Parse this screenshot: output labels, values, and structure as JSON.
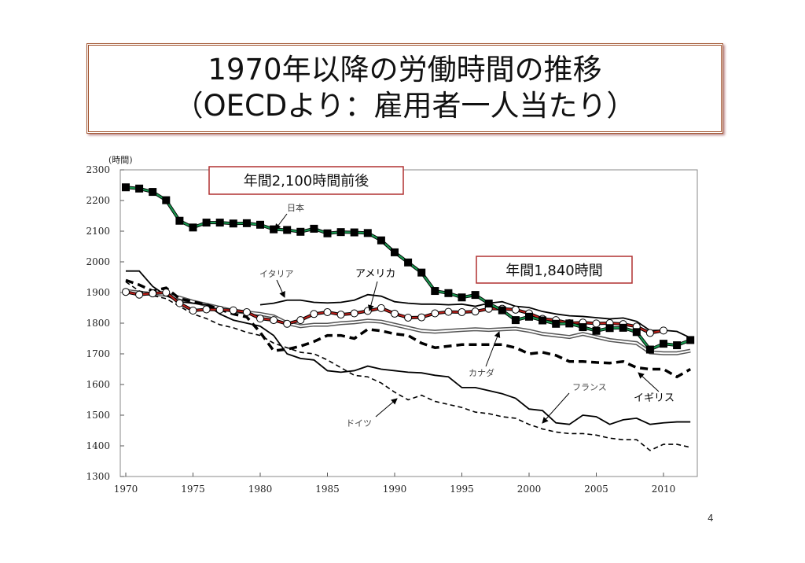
{
  "title": {
    "line1": "1970年以降の労働時間の推移",
    "line2": "（OECDより：雇用者一人当たり）"
  },
  "page_number": "4",
  "chart_data": {
    "type": "line",
    "ylabel": "(時間)",
    "ylim": [
      1300,
      2300
    ],
    "xlim": [
      1970,
      2012
    ],
    "xticks": [
      1970,
      1975,
      1980,
      1985,
      1990,
      1995,
      2000,
      2005,
      2010
    ],
    "yticks": [
      1300,
      1400,
      1500,
      1600,
      1700,
      1800,
      1900,
      2000,
      2100,
      2200,
      2300
    ],
    "grid": false,
    "annotations": [
      {
        "text": "年間2,100時間前後"
      },
      {
        "text": "年間1,840時間"
      }
    ],
    "series": [
      {
        "name": "日本",
        "start": 1970,
        "style": "green-line-black-squares",
        "color": "#1a9850",
        "values": [
          2243,
          2239,
          2228,
          2201,
          2134,
          2112,
          2128,
          2128,
          2125,
          2126,
          2121,
          2106,
          2104,
          2098,
          2108,
          2093,
          2097,
          2096,
          2094,
          2070,
          2031,
          1998,
          1965,
          1905,
          1898,
          1884,
          1892,
          1864,
          1842,
          1810,
          1821,
          1809,
          1798,
          1799,
          1787,
          1775,
          1784,
          1785,
          1771,
          1714,
          1733,
          1728,
          1745
        ]
      },
      {
        "name": "アメリカ",
        "start": 1970,
        "style": "red-line-white-circles",
        "color": "#c0201a",
        "values": [
          1902,
          1893,
          1897,
          1900,
          1865,
          1841,
          1845,
          1844,
          1842,
          1836,
          1815,
          1810,
          1798,
          1810,
          1830,
          1836,
          1828,
          1832,
          1840,
          1849,
          1831,
          1818,
          1819,
          1832,
          1837,
          1836,
          1838,
          1847,
          1847,
          1844,
          1832,
          1814,
          1810,
          1800,
          1802,
          1799,
          1800,
          1797,
          1789,
          1768,
          1776
        ]
      },
      {
        "name": "イタリア",
        "start": 1980,
        "style": "solid",
        "color": "#000000",
        "values": [
          1860,
          1865,
          1875,
          1875,
          1868,
          1866,
          1868,
          1875,
          1893,
          1888,
          1870,
          1865,
          1862,
          1862,
          1860,
          1862,
          1855,
          1865,
          1870,
          1855,
          1851,
          1838,
          1830,
          1824,
          1822,
          1818,
          1814,
          1817,
          1806,
          1776,
          1777,
          1773,
          1752
        ]
      },
      {
        "name": "カナダ",
        "start": 1970,
        "style": "double",
        "color": "#777777",
        "values": [
          1905,
          1900,
          1895,
          1893,
          1883,
          1870,
          1860,
          1850,
          1840,
          1835,
          1830,
          1822,
          1800,
          1790,
          1795,
          1795,
          1800,
          1803,
          1808,
          1805,
          1795,
          1785,
          1775,
          1772,
          1775,
          1778,
          1780,
          1778,
          1780,
          1782,
          1775,
          1765,
          1760,
          1755,
          1765,
          1755,
          1745,
          1740,
          1735,
          1705,
          1702,
          1702,
          1710
        ]
      },
      {
        "name": "イギリス",
        "start": 1970,
        "style": "thick-dashed",
        "color": "#000000",
        "values": [
          1940,
          1925,
          1905,
          1915,
          1880,
          1870,
          1860,
          1845,
          1830,
          1820,
          1770,
          1710,
          1715,
          1725,
          1740,
          1760,
          1760,
          1750,
          1780,
          1775,
          1765,
          1760,
          1735,
          1720,
          1725,
          1730,
          1730,
          1730,
          1730,
          1720,
          1700,
          1705,
          1695,
          1675,
          1675,
          1672,
          1670,
          1675,
          1655,
          1650,
          1650,
          1625,
          1650
        ]
      },
      {
        "name": "フランス",
        "start": 1970,
        "style": "solid",
        "color": "#000000",
        "values": [
          1970,
          1970,
          1920,
          1890,
          1870,
          1865,
          1860,
          1830,
          1810,
          1800,
          1790,
          1760,
          1700,
          1685,
          1680,
          1645,
          1640,
          1645,
          1660,
          1650,
          1645,
          1640,
          1638,
          1630,
          1625,
          1590,
          1590,
          1580,
          1570,
          1555,
          1520,
          1515,
          1475,
          1470,
          1500,
          1495,
          1470,
          1485,
          1490,
          1470,
          1475,
          1478,
          1478
        ]
      },
      {
        "name": "ドイツ",
        "start": 1970,
        "style": "dashed",
        "color": "#000000",
        "values": [
          1935,
          1905,
          1890,
          1880,
          1855,
          1830,
          1815,
          1795,
          1785,
          1770,
          1760,
          1735,
          1720,
          1705,
          1700,
          1680,
          1655,
          1630,
          1625,
          1605,
          1575,
          1550,
          1565,
          1545,
          1535,
          1525,
          1510,
          1505,
          1495,
          1490,
          1470,
          1455,
          1445,
          1440,
          1440,
          1435,
          1425,
          1420,
          1420,
          1385,
          1405,
          1405,
          1395
        ]
      }
    ]
  }
}
